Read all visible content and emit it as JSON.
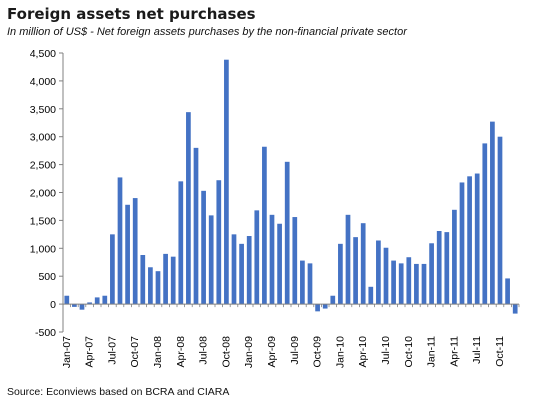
{
  "chart_data": {
    "type": "bar",
    "title": "Foreign assets net purchases",
    "subtitle": "In million  of US$ - Net foreign assets purchases by the non-financial private sector",
    "source": "Source: Econviews based on BCRA and CIARA",
    "xlabel": "",
    "ylabel": "",
    "ylim": [
      -500,
      4500
    ],
    "yticks": [
      -500,
      0,
      500,
      1000,
      1500,
      2000,
      2500,
      3000,
      3500,
      4000,
      4500
    ],
    "ytick_labels": [
      "-500",
      "0",
      "500",
      "1,000",
      "1,500",
      "2,000",
      "2,500",
      "3,000",
      "3,500",
      "4,000",
      "4,500"
    ],
    "xtick_labels": [
      {
        "index": 0,
        "label": "Jan-07"
      },
      {
        "index": 3,
        "label": "Apr-07"
      },
      {
        "index": 6,
        "label": "Jul-07"
      },
      {
        "index": 9,
        "label": "Oct-07"
      },
      {
        "index": 12,
        "label": "Jan-08"
      },
      {
        "index": 15,
        "label": "Apr-08"
      },
      {
        "index": 18,
        "label": "Jul-08"
      },
      {
        "index": 21,
        "label": "Oct-08"
      },
      {
        "index": 24,
        "label": "Jan-09"
      },
      {
        "index": 27,
        "label": "Apr-09"
      },
      {
        "index": 30,
        "label": "Jul-09"
      },
      {
        "index": 33,
        "label": "Oct-09"
      },
      {
        "index": 36,
        "label": "Jan-10"
      },
      {
        "index": 39,
        "label": "Apr-10"
      },
      {
        "index": 42,
        "label": "Jul-10"
      },
      {
        "index": 45,
        "label": "Oct-10"
      },
      {
        "index": 48,
        "label": "Jan-11"
      },
      {
        "index": 51,
        "label": "Apr-11"
      },
      {
        "index": 54,
        "label": "Jul-11"
      },
      {
        "index": 57,
        "label": "Oct-11"
      }
    ],
    "values": [
      150,
      -50,
      -100,
      30,
      120,
      150,
      1250,
      2270,
      1780,
      1900,
      880,
      660,
      590,
      900,
      850,
      2200,
      3440,
      2800,
      2030,
      1590,
      2220,
      4380,
      1250,
      1080,
      1220,
      1680,
      2820,
      1600,
      1440,
      2550,
      1560,
      780,
      730,
      -130,
      -80,
      150,
      1080,
      1600,
      1200,
      1450,
      310,
      1140,
      1010,
      780,
      730,
      840,
      720,
      720,
      1090,
      1310,
      1290,
      1690,
      2180,
      2290,
      2340,
      2880,
      3270,
      3000,
      460,
      -170
    ],
    "bar_color": "#4472C4",
    "grid": false,
    "legend": "none"
  }
}
